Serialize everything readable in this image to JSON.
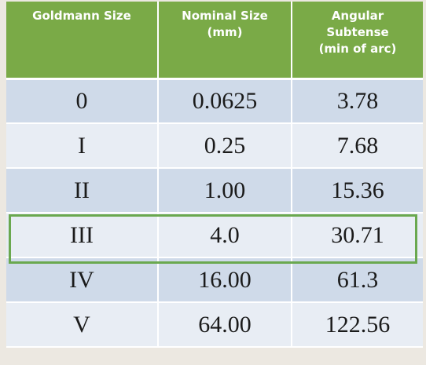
{
  "table": {
    "headers": [
      "Goldmann Size",
      "Nominal Size (mm)",
      "Angular Subtense (min of arc)"
    ],
    "header_lines": [
      [
        "Goldmann Size"
      ],
      [
        "Nominal Size",
        "(mm)"
      ],
      [
        "Angular",
        "Subtense",
        "(min of arc)"
      ]
    ],
    "rows": [
      [
        "0",
        "0.0625",
        "3.78"
      ],
      [
        "I",
        "0.25",
        "7.68"
      ],
      [
        "II",
        "1.00",
        "15.36"
      ],
      [
        "III",
        "4.0",
        "30.71"
      ],
      [
        "IV",
        "16.00",
        "61.3"
      ],
      [
        "V",
        "64.00",
        "122.56"
      ]
    ],
    "highlighted_row": "III"
  },
  "colors": {
    "header_bg": "#7aaa47",
    "row_dark": "#cfdae9",
    "row_light": "#e8edf4",
    "highlight_border": "#6aa84f",
    "page_bg": "#ece8e1"
  }
}
